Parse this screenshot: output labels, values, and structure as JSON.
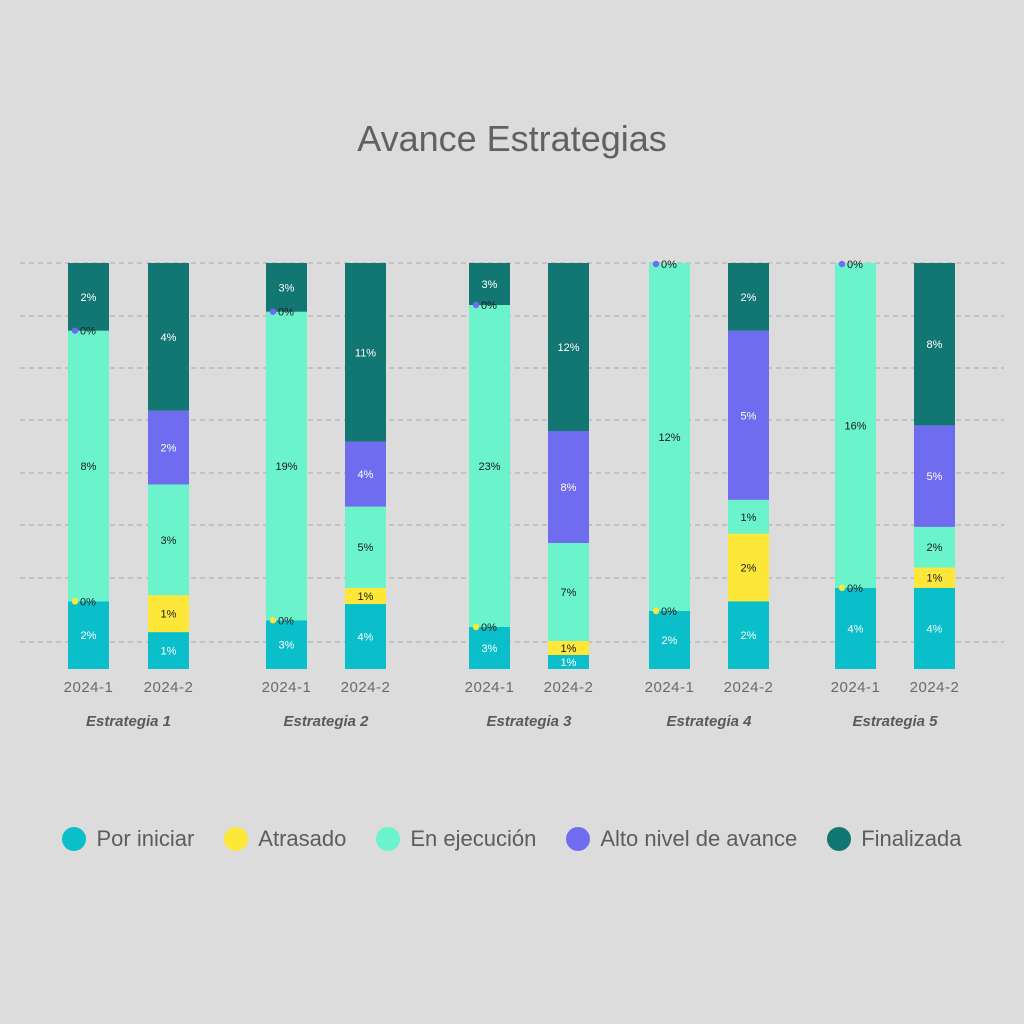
{
  "colors": {
    "background": "#dcdcdc",
    "grid": "#a9a9a9",
    "Por iniciar": "#0bbfca",
    "Atrasado": "#fde83a",
    "En ejecución": "#6bf4cb",
    "Alto nivel de avance": "#6f6cf0",
    "Finalizada": "#127672"
  },
  "chart_data": {
    "type": "bar",
    "stacked": true,
    "normalized": true,
    "title": "Avance Estrategias",
    "grid": true,
    "legend_position": "bottom",
    "series_names": [
      "Por iniciar",
      "Atrasado",
      "En ejecución",
      "Alto nivel de avance",
      "Finalizada"
    ],
    "groups": [
      {
        "name": "Estrategia 1",
        "bars": [
          {
            "period": "2024-1",
            "values": [
              2,
              0,
              8,
              0,
              2
            ],
            "labels": [
              "2%",
              "0%",
              "8%",
              "0%",
              "2%"
            ]
          },
          {
            "period": "2024-2",
            "values": [
              1,
              1,
              3,
              2,
              4
            ],
            "labels": [
              "1%",
              "1%",
              "3%",
              "2%",
              "4%"
            ]
          }
        ]
      },
      {
        "name": "Estrategia 2",
        "bars": [
          {
            "period": "2024-1",
            "values": [
              3,
              0,
              19,
              0,
              3
            ],
            "labels": [
              "3%",
              "0%",
              "19%",
              "0%",
              "3%"
            ]
          },
          {
            "period": "2024-2",
            "values": [
              4,
              1,
              5,
              4,
              11
            ],
            "labels": [
              "4%",
              "1%",
              "5%",
              "4%",
              "11%"
            ]
          }
        ]
      },
      {
        "name": "Estrategia 3",
        "bars": [
          {
            "period": "2024-1",
            "values": [
              3,
              0,
              23,
              0,
              3
            ],
            "labels": [
              "3%",
              "0%",
              "23%",
              "0%",
              "3%"
            ]
          },
          {
            "period": "2024-2",
            "values": [
              1,
              1,
              7,
              8,
              12
            ],
            "labels": [
              "1%",
              "1%",
              "7%",
              "8%",
              "12%"
            ]
          }
        ]
      },
      {
        "name": "Estrategia 4",
        "bars": [
          {
            "period": "2024-1",
            "values": [
              2,
              0,
              12,
              0,
              0
            ],
            "labels": [
              "2%",
              "0%",
              "12%",
              "0%",
              ""
            ]
          },
          {
            "period": "2024-2",
            "values": [
              2,
              2,
              1,
              5,
              2
            ],
            "labels": [
              "2%",
              "2%",
              "1%",
              "5%",
              "2%"
            ]
          }
        ]
      },
      {
        "name": "Estrategia 5",
        "bars": [
          {
            "period": "2024-1",
            "values": [
              4,
              0,
              16,
              0,
              0
            ],
            "labels": [
              "4%",
              "0%",
              "16%",
              "0%",
              ""
            ]
          },
          {
            "period": "2024-2",
            "values": [
              4,
              1,
              2,
              5,
              8
            ],
            "labels": [
              "4%",
              "1%",
              "2%",
              "5%",
              "8%"
            ]
          }
        ]
      }
    ]
  }
}
